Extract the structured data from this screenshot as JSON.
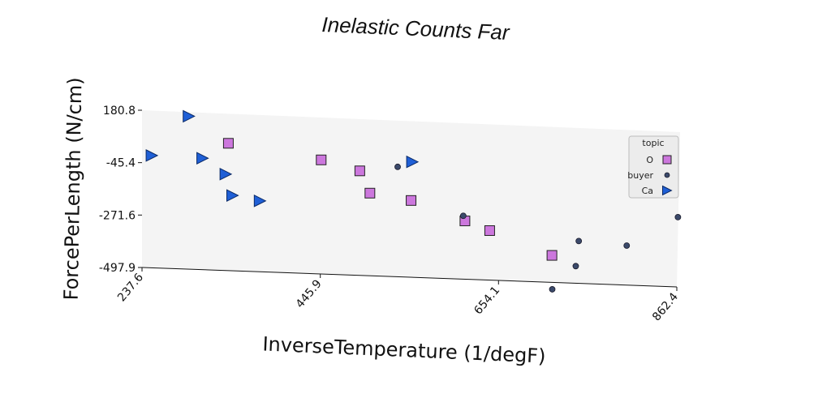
{
  "chart_data": {
    "type": "scatter",
    "title": "Inelastic Counts Far",
    "xlabel": "InverseTemperature (1/degF)",
    "ylabel": "ForcePerLength (N/cm)",
    "xlim": [
      237.6,
      862.4
    ],
    "ylim": [
      -497.9,
      180.8
    ],
    "x_ticks": [
      "237.6",
      "445.9",
      "654.1",
      "862.4"
    ],
    "y_ticks": [
      "180.8",
      "-45.4",
      "-271.6",
      "-497.9"
    ],
    "legend": {
      "title": "topic",
      "placement": "right",
      "entries": [
        "O",
        "buyer",
        "Ca"
      ]
    },
    "series": [
      {
        "name": "O",
        "marker": "square",
        "color": "#cc77dd",
        "points": [
          [
            338,
            53
          ],
          [
            446,
            -3
          ],
          [
            491,
            -44
          ],
          [
            503,
            -139
          ],
          [
            551,
            -164
          ],
          [
            614,
            -244
          ],
          [
            643,
            -282
          ],
          [
            716,
            -380
          ]
        ]
      },
      {
        "name": "buyer",
        "marker": "circle",
        "color": "#3b4a6b",
        "points": [
          [
            535,
            -20
          ],
          [
            612,
            -222
          ],
          [
            744,
            -423
          ],
          [
            747,
            -313
          ],
          [
            717,
            -528
          ],
          [
            803,
            -325
          ],
          [
            862,
            -192
          ]
        ]
      },
      {
        "name": "Ca",
        "marker": "triangle-right",
        "color": "#1f5fd6",
        "points": [
          [
            249,
            -13
          ],
          [
            292,
            163
          ],
          [
            308,
            -16
          ],
          [
            335,
            -81
          ],
          [
            343,
            -172
          ],
          [
            375,
            -191
          ],
          [
            552,
            4
          ]
        ]
      }
    ]
  }
}
